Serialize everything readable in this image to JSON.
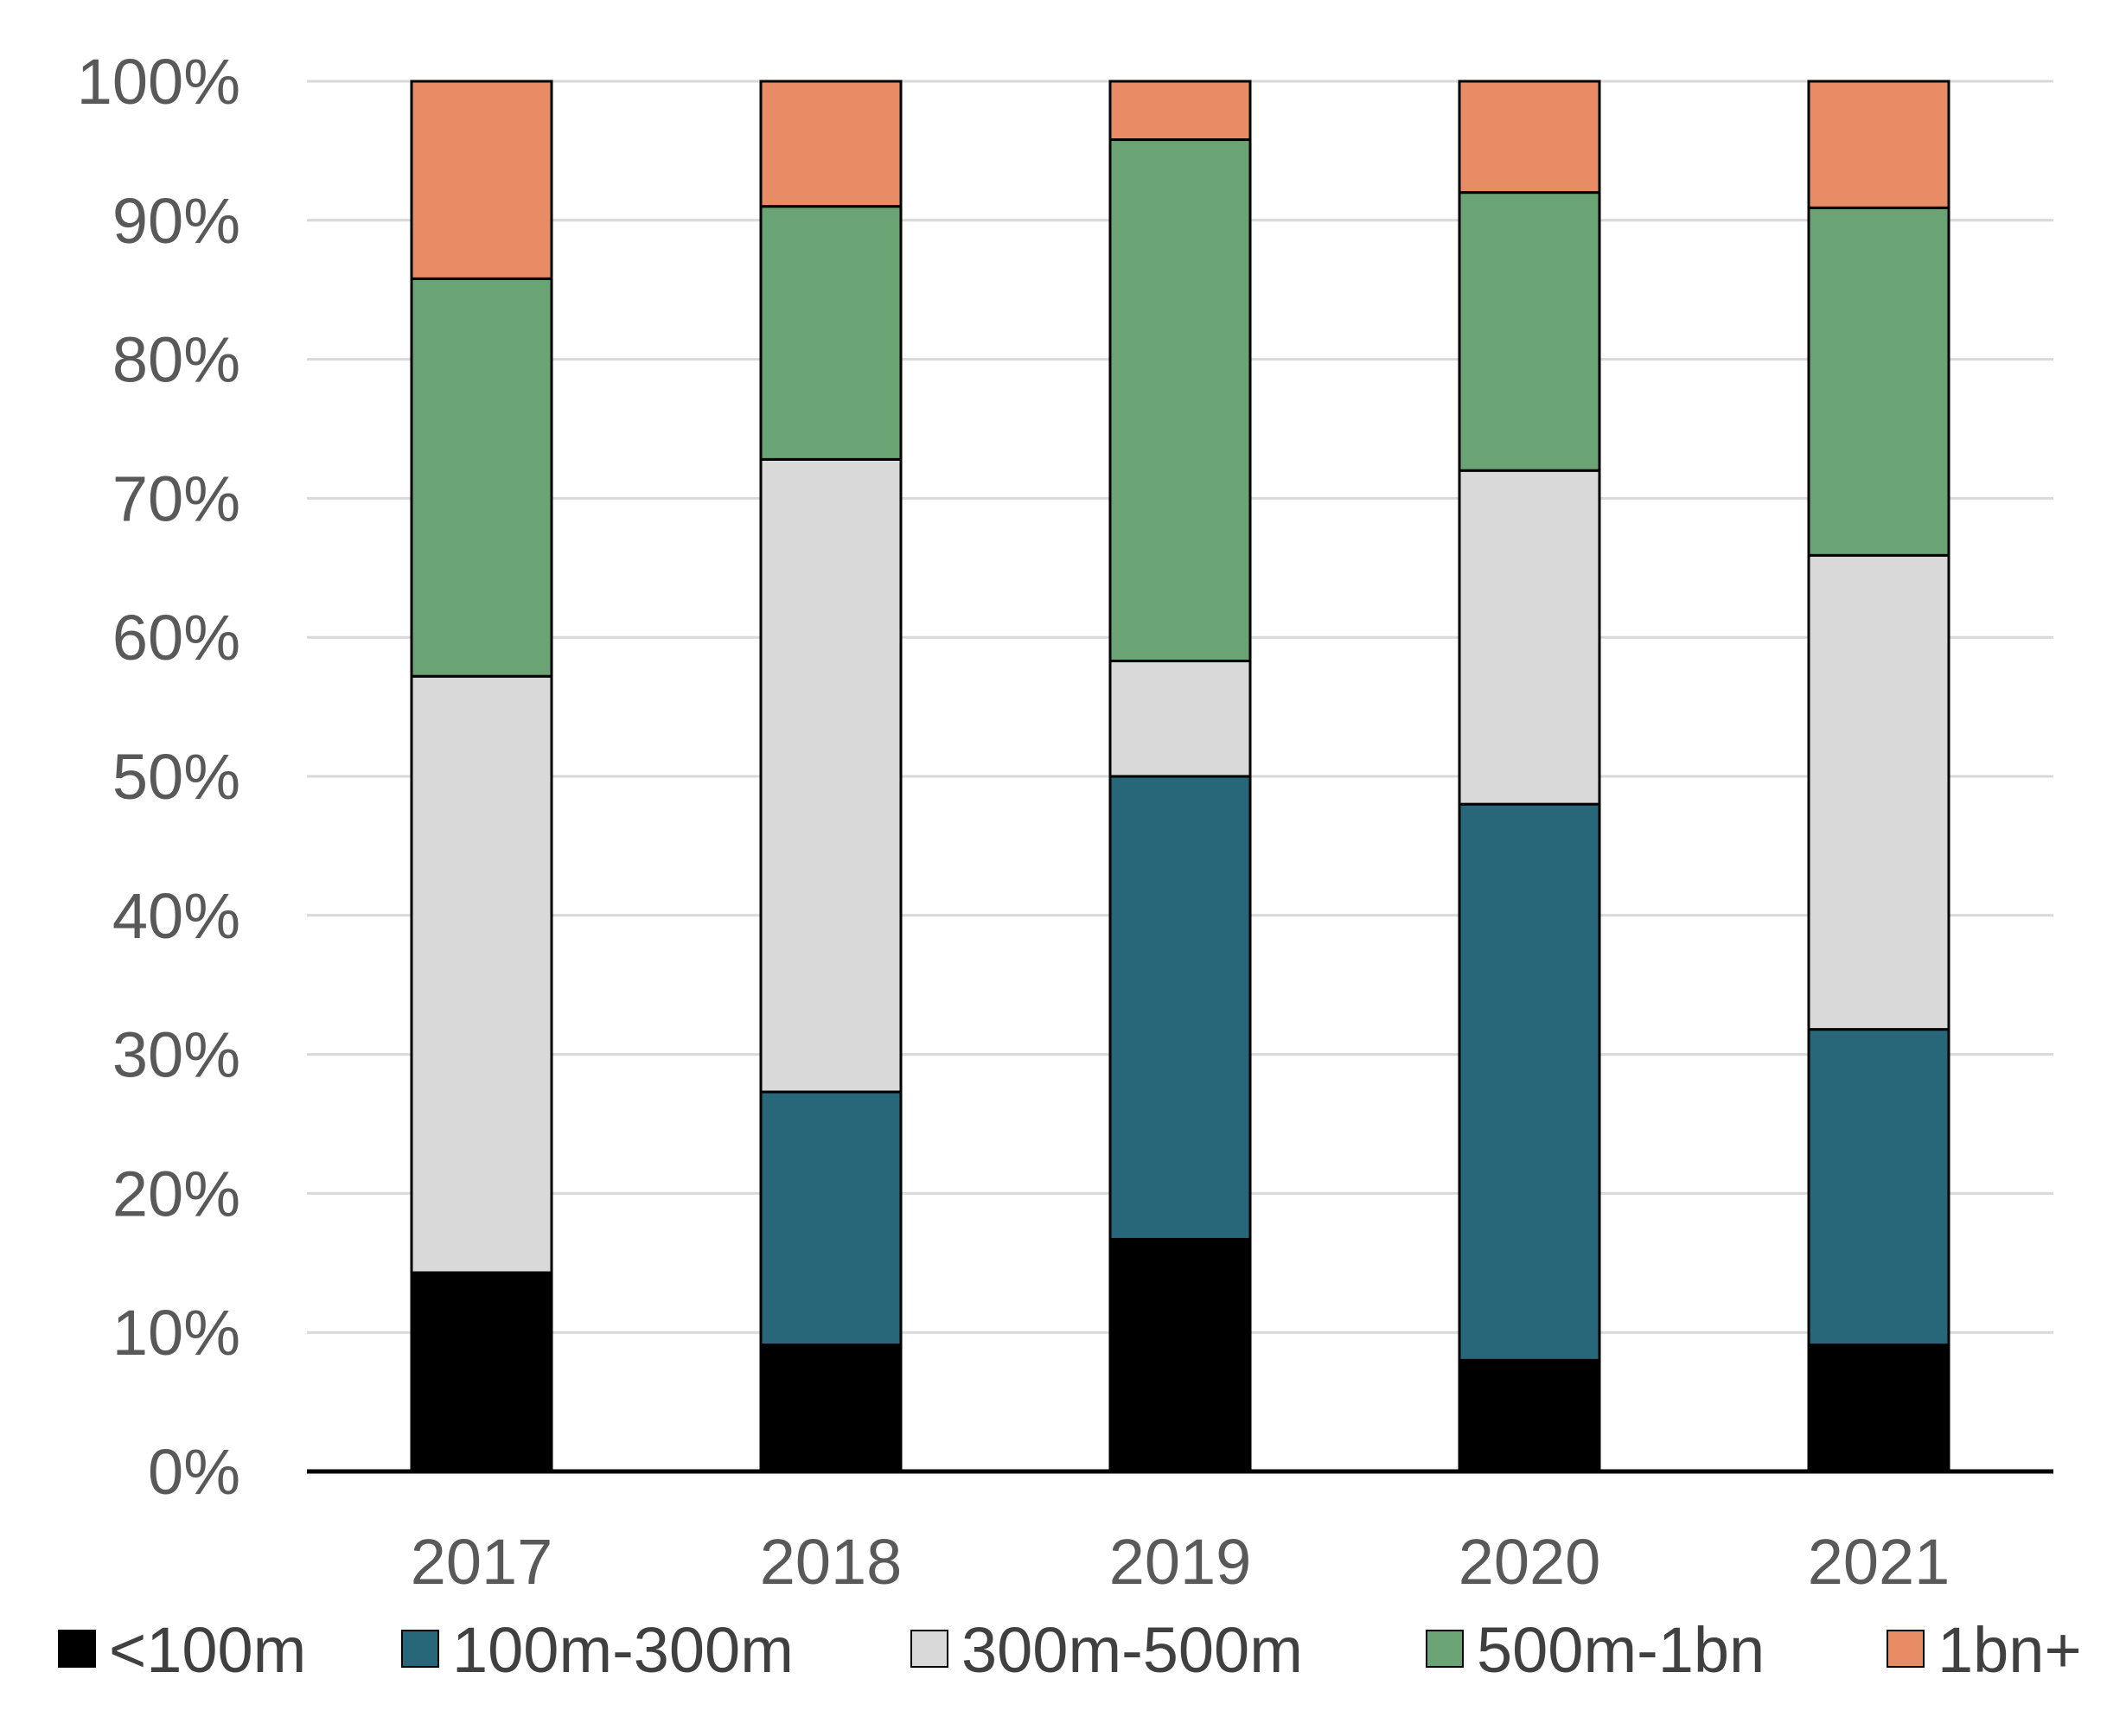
{
  "chart_data": {
    "type": "bar",
    "stacked": true,
    "title": "",
    "xlabel": "",
    "ylabel": "",
    "ylim": [
      0,
      100
    ],
    "y_ticks": [
      "0%",
      "10%",
      "20%",
      "30%",
      "40%",
      "50%",
      "60%",
      "70%",
      "80%",
      "90%",
      "100%"
    ],
    "categories": [
      "2017",
      "2018",
      "2019",
      "2020",
      "2021"
    ],
    "series": [
      {
        "name": "<100m",
        "color": "#000000",
        "values": [
          14.3,
          9.1,
          16.7,
          8.0,
          9.1
        ]
      },
      {
        "name": "100m-300m",
        "color": "#286779",
        "values": [
          0.0,
          18.2,
          33.3,
          40.0,
          22.7
        ]
      },
      {
        "name": "300m-500m",
        "color": "#d9d9d9",
        "values": [
          42.9,
          45.5,
          8.3,
          24.0,
          34.1
        ]
      },
      {
        "name": "500m-1bn",
        "color": "#6ba474",
        "values": [
          28.6,
          18.2,
          37.5,
          20.0,
          25.0
        ]
      },
      {
        "name": "1bn+",
        "color": "#e88c66",
        "values": [
          14.2,
          9.0,
          4.2,
          8.0,
          9.1
        ]
      }
    ],
    "grid": true,
    "legend_position": "bottom"
  }
}
